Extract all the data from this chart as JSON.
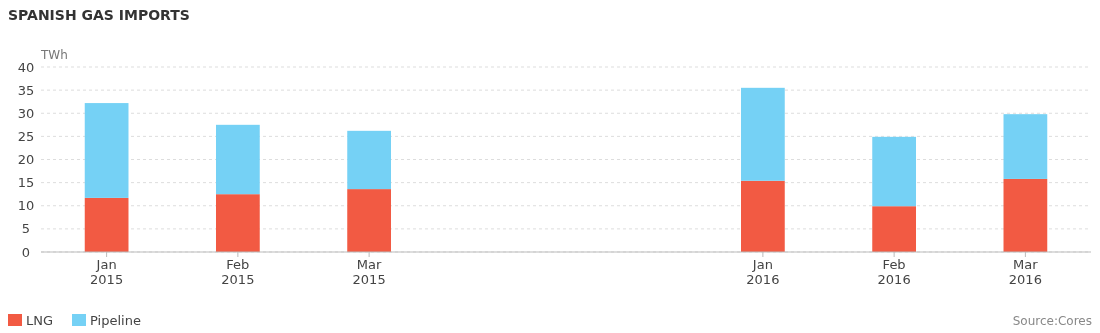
{
  "chart_data": {
    "type": "bar",
    "title": "SPANISH GAS IMPORTS",
    "ylabel": "TWh",
    "categories": [
      "Jan 2015",
      "Feb 2015",
      "Mar 2015",
      null,
      null,
      "Jan 2016",
      "Feb 2016",
      "Mar 2016"
    ],
    "series": [
      {
        "name": "LNG",
        "color": "#f25a43",
        "values": [
          11.7,
          12.5,
          13.6,
          null,
          null,
          15.4,
          9.9,
          15.8
        ]
      },
      {
        "name": "Pipeline",
        "color": "#75d1f5",
        "values": [
          20.5,
          15.0,
          12.6,
          null,
          null,
          20.1,
          15.0,
          14.0
        ]
      }
    ],
    "stacked": true,
    "ylim": [
      0,
      40
    ],
    "yticks": [
      0,
      5,
      10,
      15,
      20,
      25,
      30,
      35,
      40
    ],
    "grid": "y",
    "legend": "bottom left",
    "annotations": [
      "Source:Cores"
    ]
  }
}
